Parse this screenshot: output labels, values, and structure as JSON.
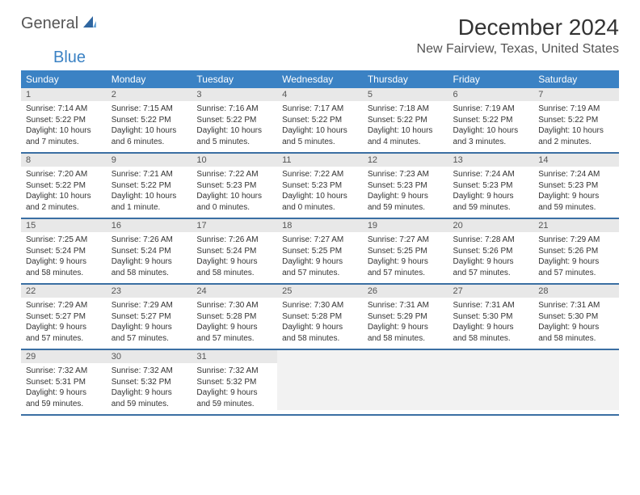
{
  "brand": {
    "part1": "General",
    "part2": "Blue"
  },
  "title": "December 2024",
  "location": "New Fairview, Texas, United States",
  "colors": {
    "header_bg": "#3b82c4",
    "header_fg": "#ffffff",
    "row_divider": "#3b6fa3",
    "daynum_bg": "#e8e8e8",
    "brand_blue": "#3b82c4",
    "text_dark": "#333333"
  },
  "day_headers": [
    "Sunday",
    "Monday",
    "Tuesday",
    "Wednesday",
    "Thursday",
    "Friday",
    "Saturday"
  ],
  "weeks": [
    [
      {
        "n": "1",
        "sr": "7:14 AM",
        "ss": "5:22 PM",
        "dl": "10 hours and 7 minutes."
      },
      {
        "n": "2",
        "sr": "7:15 AM",
        "ss": "5:22 PM",
        "dl": "10 hours and 6 minutes."
      },
      {
        "n": "3",
        "sr": "7:16 AM",
        "ss": "5:22 PM",
        "dl": "10 hours and 5 minutes."
      },
      {
        "n": "4",
        "sr": "7:17 AM",
        "ss": "5:22 PM",
        "dl": "10 hours and 5 minutes."
      },
      {
        "n": "5",
        "sr": "7:18 AM",
        "ss": "5:22 PM",
        "dl": "10 hours and 4 minutes."
      },
      {
        "n": "6",
        "sr": "7:19 AM",
        "ss": "5:22 PM",
        "dl": "10 hours and 3 minutes."
      },
      {
        "n": "7",
        "sr": "7:19 AM",
        "ss": "5:22 PM",
        "dl": "10 hours and 2 minutes."
      }
    ],
    [
      {
        "n": "8",
        "sr": "7:20 AM",
        "ss": "5:22 PM",
        "dl": "10 hours and 2 minutes."
      },
      {
        "n": "9",
        "sr": "7:21 AM",
        "ss": "5:22 PM",
        "dl": "10 hours and 1 minute."
      },
      {
        "n": "10",
        "sr": "7:22 AM",
        "ss": "5:23 PM",
        "dl": "10 hours and 0 minutes."
      },
      {
        "n": "11",
        "sr": "7:22 AM",
        "ss": "5:23 PM",
        "dl": "10 hours and 0 minutes."
      },
      {
        "n": "12",
        "sr": "7:23 AM",
        "ss": "5:23 PM",
        "dl": "9 hours and 59 minutes."
      },
      {
        "n": "13",
        "sr": "7:24 AM",
        "ss": "5:23 PM",
        "dl": "9 hours and 59 minutes."
      },
      {
        "n": "14",
        "sr": "7:24 AM",
        "ss": "5:23 PM",
        "dl": "9 hours and 59 minutes."
      }
    ],
    [
      {
        "n": "15",
        "sr": "7:25 AM",
        "ss": "5:24 PM",
        "dl": "9 hours and 58 minutes."
      },
      {
        "n": "16",
        "sr": "7:26 AM",
        "ss": "5:24 PM",
        "dl": "9 hours and 58 minutes."
      },
      {
        "n": "17",
        "sr": "7:26 AM",
        "ss": "5:24 PM",
        "dl": "9 hours and 58 minutes."
      },
      {
        "n": "18",
        "sr": "7:27 AM",
        "ss": "5:25 PM",
        "dl": "9 hours and 57 minutes."
      },
      {
        "n": "19",
        "sr": "7:27 AM",
        "ss": "5:25 PM",
        "dl": "9 hours and 57 minutes."
      },
      {
        "n": "20",
        "sr": "7:28 AM",
        "ss": "5:26 PM",
        "dl": "9 hours and 57 minutes."
      },
      {
        "n": "21",
        "sr": "7:29 AM",
        "ss": "5:26 PM",
        "dl": "9 hours and 57 minutes."
      }
    ],
    [
      {
        "n": "22",
        "sr": "7:29 AM",
        "ss": "5:27 PM",
        "dl": "9 hours and 57 minutes."
      },
      {
        "n": "23",
        "sr": "7:29 AM",
        "ss": "5:27 PM",
        "dl": "9 hours and 57 minutes."
      },
      {
        "n": "24",
        "sr": "7:30 AM",
        "ss": "5:28 PM",
        "dl": "9 hours and 57 minutes."
      },
      {
        "n": "25",
        "sr": "7:30 AM",
        "ss": "5:28 PM",
        "dl": "9 hours and 58 minutes."
      },
      {
        "n": "26",
        "sr": "7:31 AM",
        "ss": "5:29 PM",
        "dl": "9 hours and 58 minutes."
      },
      {
        "n": "27",
        "sr": "7:31 AM",
        "ss": "5:30 PM",
        "dl": "9 hours and 58 minutes."
      },
      {
        "n": "28",
        "sr": "7:31 AM",
        "ss": "5:30 PM",
        "dl": "9 hours and 58 minutes."
      }
    ],
    [
      {
        "n": "29",
        "sr": "7:32 AM",
        "ss": "5:31 PM",
        "dl": "9 hours and 59 minutes."
      },
      {
        "n": "30",
        "sr": "7:32 AM",
        "ss": "5:32 PM",
        "dl": "9 hours and 59 minutes."
      },
      {
        "n": "31",
        "sr": "7:32 AM",
        "ss": "5:32 PM",
        "dl": "9 hours and 59 minutes."
      },
      null,
      null,
      null,
      null
    ]
  ],
  "labels": {
    "sunrise": "Sunrise:",
    "sunset": "Sunset:",
    "daylight": "Daylight:"
  }
}
